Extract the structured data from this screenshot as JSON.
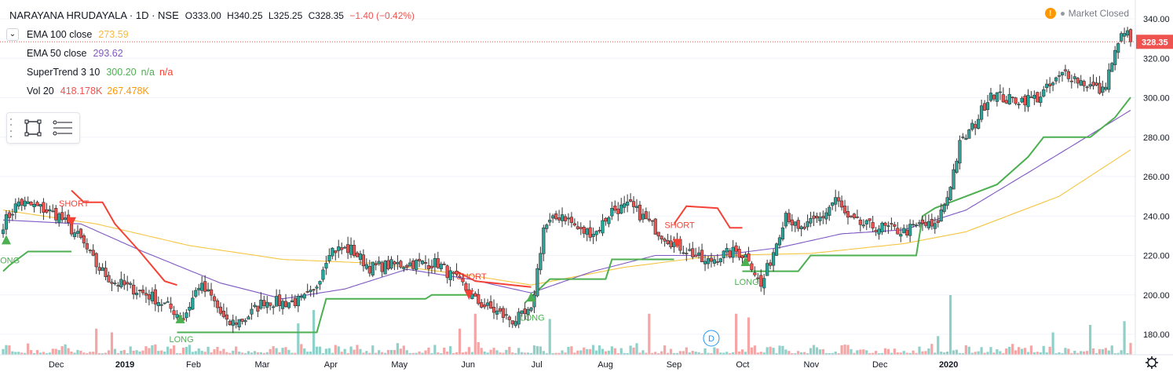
{
  "header": {
    "symbol": "NARAYANA HRUDAYALA · 1D · NSE",
    "open": "O333.00",
    "high": "H340.25",
    "low": "L325.25",
    "close": "C328.35",
    "change": "−1.40 (−0.42%)"
  },
  "status": {
    "market": "Market Closed",
    "warn_icon": "!"
  },
  "indicators": {
    "ema100": {
      "name": "EMA 100 close",
      "value": "273.59"
    },
    "ema50": {
      "name": "EMA 50 close",
      "value": "293.62"
    },
    "supertrend": {
      "name": "SuperTrend 3 10",
      "value": "300.20",
      "v2": "n/a",
      "v3": "n/a"
    },
    "vol": {
      "name": "Vol 20",
      "value": "418.178K",
      "v2": "267.478K"
    }
  },
  "colors": {
    "up": "#26a69a",
    "down": "#ef5350",
    "ema100": "#f5c542",
    "ema50": "#7e57c2",
    "st_up": "#4caf50",
    "st_down": "#f44336",
    "vol_up": "#8fd0c9",
    "vol_down": "#f3a6a5"
  },
  "chart_data": {
    "type": "candlestick",
    "symbol": "NARAYANA HRUDAYALA",
    "interval": "1D",
    "exchange": "NSE",
    "last_price": 328.35,
    "last_price_label": "328.35",
    "y_range": [
      170,
      345
    ],
    "y_ticks": [
      180,
      200,
      220,
      240,
      260,
      280,
      300,
      320,
      340
    ],
    "x_ticks": [
      "Nov",
      "Dec",
      "2019",
      "Feb",
      "Mar",
      "Apr",
      "May",
      "Jun",
      "Jul",
      "Aug",
      "Sep",
      "Oct",
      "Nov",
      "Dec",
      "2020"
    ],
    "anchors": [
      [
        0,
        236
      ],
      [
        5,
        247
      ],
      [
        12,
        244
      ],
      [
        18,
        240
      ],
      [
        25,
        228
      ],
      [
        30,
        215
      ],
      [
        35,
        207
      ],
      [
        42,
        203
      ],
      [
        48,
        199
      ],
      [
        55,
        192
      ],
      [
        58,
        188
      ],
      [
        63,
        205
      ],
      [
        67,
        199
      ],
      [
        72,
        185
      ],
      [
        78,
        188
      ],
      [
        84,
        197
      ],
      [
        90,
        196
      ],
      [
        96,
        197
      ],
      [
        100,
        201
      ],
      [
        105,
        223
      ],
      [
        112,
        223
      ],
      [
        118,
        214
      ],
      [
        124,
        215
      ],
      [
        132,
        216
      ],
      [
        140,
        216
      ],
      [
        144,
        210
      ],
      [
        148,
        205
      ],
      [
        152,
        197
      ],
      [
        158,
        192
      ],
      [
        164,
        187
      ],
      [
        170,
        191
      ],
      [
        174,
        234
      ],
      [
        180,
        241
      ],
      [
        186,
        232
      ],
      [
        191,
        232
      ],
      [
        196,
        243
      ],
      [
        202,
        245
      ],
      [
        207,
        238
      ],
      [
        211,
        232
      ],
      [
        216,
        226
      ],
      [
        221,
        222
      ],
      [
        226,
        216
      ],
      [
        231,
        220
      ],
      [
        236,
        222
      ],
      [
        240,
        219
      ],
      [
        244,
        204
      ],
      [
        248,
        222
      ],
      [
        252,
        242
      ],
      [
        256,
        232
      ],
      [
        260,
        236
      ],
      [
        264,
        240
      ],
      [
        268,
        249
      ],
      [
        272,
        238
      ],
      [
        278,
        235
      ],
      [
        284,
        234
      ],
      [
        290,
        232
      ],
      [
        296,
        236
      ],
      [
        300,
        234
      ],
      [
        304,
        250
      ],
      [
        308,
        276
      ],
      [
        313,
        287
      ],
      [
        318,
        303
      ],
      [
        323,
        299
      ],
      [
        328,
        299
      ],
      [
        333,
        300
      ],
      [
        338,
        307
      ],
      [
        342,
        313
      ],
      [
        346,
        309
      ],
      [
        350,
        306
      ],
      [
        354,
        303
      ],
      [
        357,
        318
      ],
      [
        361,
        335
      ],
      [
        363,
        328
      ]
    ],
    "series": [
      {
        "name": "EMA 100 close",
        "points": [
          [
            0,
            243
          ],
          [
            30,
            236
          ],
          [
            60,
            225
          ],
          [
            90,
            218
          ],
          [
            120,
            216
          ],
          [
            150,
            210
          ],
          [
            170,
            205
          ],
          [
            200,
            214
          ],
          [
            230,
            220
          ],
          [
            260,
            221
          ],
          [
            290,
            226
          ],
          [
            310,
            232
          ],
          [
            340,
            250
          ],
          [
            363,
            273.59
          ]
        ]
      },
      {
        "name": "EMA 50 close",
        "points": [
          [
            0,
            238
          ],
          [
            25,
            236
          ],
          [
            45,
            222
          ],
          [
            70,
            206
          ],
          [
            90,
            198
          ],
          [
            110,
            203
          ],
          [
            130,
            213
          ],
          [
            150,
            208
          ],
          [
            170,
            201
          ],
          [
            190,
            212
          ],
          [
            210,
            220
          ],
          [
            230,
            220
          ],
          [
            250,
            224
          ],
          [
            270,
            231
          ],
          [
            290,
            233
          ],
          [
            310,
            243
          ],
          [
            330,
            262
          ],
          [
            363,
            293.62
          ]
        ]
      }
    ],
    "supertrend_bands": [
      {
        "dir": "up",
        "points": [
          [
            0,
            212
          ],
          [
            2,
            215
          ],
          [
            8,
            222
          ],
          [
            22,
            222
          ]
        ]
      },
      {
        "dir": "down",
        "points": [
          [
            22,
            253
          ],
          [
            26,
            247
          ],
          [
            32,
            247
          ],
          [
            36,
            236
          ],
          [
            44,
            222
          ],
          [
            52,
            207
          ],
          [
            56,
            205
          ]
        ]
      },
      {
        "dir": "up",
        "points": [
          [
            56,
            181
          ],
          [
            101,
            181
          ],
          [
            104,
            198
          ],
          [
            136,
            198
          ],
          [
            138,
            200
          ],
          [
            150,
            200
          ]
        ]
      },
      {
        "dir": "down",
        "points": [
          [
            146,
            212
          ],
          [
            152,
            207
          ],
          [
            170,
            204
          ]
        ]
      },
      {
        "dir": "up",
        "points": [
          [
            168,
            196
          ],
          [
            176,
            208
          ],
          [
            194,
            208
          ],
          [
            196,
            218
          ],
          [
            216,
            218
          ]
        ]
      },
      {
        "dir": "down",
        "points": [
          [
            216,
            236
          ],
          [
            220,
            245
          ],
          [
            230,
            244
          ],
          [
            234,
            234
          ],
          [
            238,
            234
          ]
        ]
      },
      {
        "dir": "up",
        "points": [
          [
            238,
            212
          ],
          [
            256,
            212
          ],
          [
            260,
            220
          ],
          [
            294,
            220
          ],
          [
            296,
            240
          ],
          [
            300,
            244
          ],
          [
            320,
            256
          ],
          [
            330,
            270
          ],
          [
            335,
            280
          ],
          [
            350,
            280
          ],
          [
            358,
            290
          ],
          [
            363,
            300.2
          ]
        ]
      }
    ],
    "signals": [
      {
        "label": "LONG",
        "type": "long",
        "x": 1,
        "price": 228
      },
      {
        "label": "SHORT",
        "type": "short",
        "x": 22,
        "price": 237
      },
      {
        "label": "LONG",
        "type": "long",
        "x": 57,
        "price": 188
      },
      {
        "label": "SHORT",
        "type": "short",
        "x": 150,
        "price": 200
      },
      {
        "label": "LONG",
        "type": "long",
        "x": 170,
        "price": 199
      },
      {
        "label": "SHORT",
        "type": "short",
        "x": 217,
        "price": 226
      },
      {
        "label": "LONG",
        "type": "long",
        "x": 239,
        "price": 217
      }
    ],
    "volume_spikes": [
      [
        30,
        0.35
      ],
      [
        35,
        0.3
      ],
      [
        95,
        0.42
      ],
      [
        100,
        0.6
      ],
      [
        147,
        0.35
      ],
      [
        152,
        0.55
      ],
      [
        176,
        0.48
      ],
      [
        208,
        0.55
      ],
      [
        236,
        0.55
      ],
      [
        240,
        0.5
      ],
      [
        301,
        0.25
      ],
      [
        305,
        0.8
      ],
      [
        338,
        0.3
      ],
      [
        350,
        0.4
      ],
      [
        361,
        0.45
      ]
    ],
    "event_marker": "D",
    "event_x": 228
  }
}
